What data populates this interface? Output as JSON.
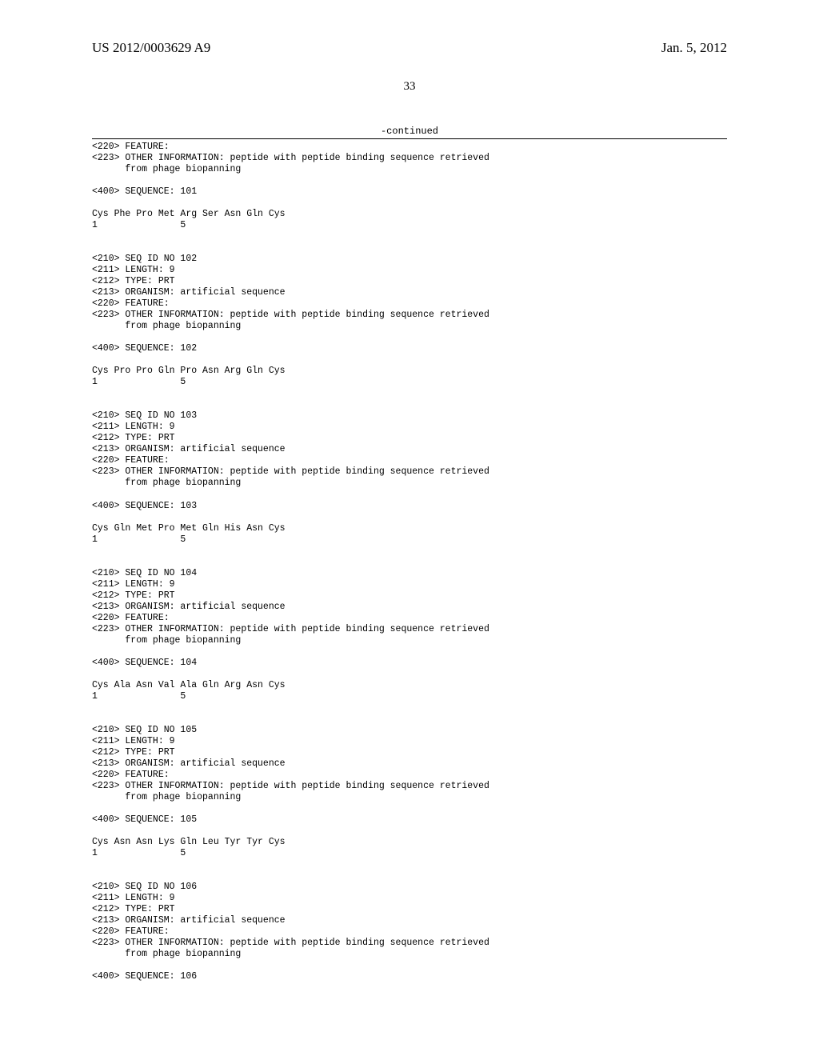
{
  "header": {
    "pub_number": "US 2012/0003629 A9",
    "pub_date": "Jan. 5, 2012"
  },
  "page_number": "33",
  "continued_label": "-continued",
  "blocks": [
    {
      "kind": "featcont",
      "lines": [
        "<220> FEATURE:",
        "<223> OTHER INFORMATION: peptide with peptide binding sequence retrieved",
        "      from phage biopanning"
      ]
    },
    {
      "kind": "seqhdr",
      "line": "<400> SEQUENCE: 101"
    },
    {
      "kind": "seq",
      "residues": "Cys Phe Pro Met Arg Ser Asn Gln Cys",
      "numline": "1               5"
    },
    {
      "kind": "entry",
      "lines": [
        "<210> SEQ ID NO 102",
        "<211> LENGTH: 9",
        "<212> TYPE: PRT",
        "<213> ORGANISM: artificial sequence",
        "<220> FEATURE:",
        "<223> OTHER INFORMATION: peptide with peptide binding sequence retrieved",
        "      from phage biopanning"
      ]
    },
    {
      "kind": "seqhdr",
      "line": "<400> SEQUENCE: 102"
    },
    {
      "kind": "seq",
      "residues": "Cys Pro Pro Gln Pro Asn Arg Gln Cys",
      "numline": "1               5"
    },
    {
      "kind": "entry",
      "lines": [
        "<210> SEQ ID NO 103",
        "<211> LENGTH: 9",
        "<212> TYPE: PRT",
        "<213> ORGANISM: artificial sequence",
        "<220> FEATURE:",
        "<223> OTHER INFORMATION: peptide with peptide binding sequence retrieved",
        "      from phage biopanning"
      ]
    },
    {
      "kind": "seqhdr",
      "line": "<400> SEQUENCE: 103"
    },
    {
      "kind": "seq",
      "residues": "Cys Gln Met Pro Met Gln His Asn Cys",
      "numline": "1               5"
    },
    {
      "kind": "entry",
      "lines": [
        "<210> SEQ ID NO 104",
        "<211> LENGTH: 9",
        "<212> TYPE: PRT",
        "<213> ORGANISM: artificial sequence",
        "<220> FEATURE:",
        "<223> OTHER INFORMATION: peptide with peptide binding sequence retrieved",
        "      from phage biopanning"
      ]
    },
    {
      "kind": "seqhdr",
      "line": "<400> SEQUENCE: 104"
    },
    {
      "kind": "seq",
      "residues": "Cys Ala Asn Val Ala Gln Arg Asn Cys",
      "numline": "1               5"
    },
    {
      "kind": "entry",
      "lines": [
        "<210> SEQ ID NO 105",
        "<211> LENGTH: 9",
        "<212> TYPE: PRT",
        "<213> ORGANISM: artificial sequence",
        "<220> FEATURE:",
        "<223> OTHER INFORMATION: peptide with peptide binding sequence retrieved",
        "      from phage biopanning"
      ]
    },
    {
      "kind": "seqhdr",
      "line": "<400> SEQUENCE: 105"
    },
    {
      "kind": "seq",
      "residues": "Cys Asn Asn Lys Gln Leu Tyr Tyr Cys",
      "numline": "1               5"
    },
    {
      "kind": "entry",
      "lines": [
        "<210> SEQ ID NO 106",
        "<211> LENGTH: 9",
        "<212> TYPE: PRT",
        "<213> ORGANISM: artificial sequence",
        "<220> FEATURE:",
        "<223> OTHER INFORMATION: peptide with peptide binding sequence retrieved",
        "      from phage biopanning"
      ]
    },
    {
      "kind": "seqhdr",
      "line": "<400> SEQUENCE: 106"
    }
  ]
}
